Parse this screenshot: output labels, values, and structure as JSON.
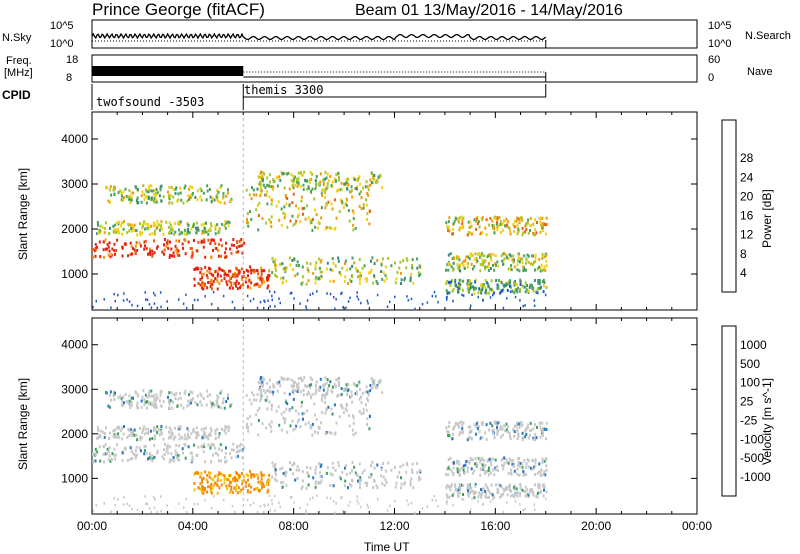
{
  "header": {
    "title": "Prince George (fitACF)",
    "beam_dates": "Beam 01  13/May/2016 - 14/May/2016"
  },
  "side_labels": {
    "nsky": "N.Sky",
    "nsearch": "N.Search",
    "freq_line1": "Freq.",
    "freq_line2": "[MHz]",
    "nave": "Nave",
    "cpid": "CPID",
    "nsky_top": "10^5",
    "nsky_bottom": "10^0",
    "nsearch_top": "10^5",
    "nsearch_bottom": "10^0",
    "freq_top": "18",
    "freq_bottom": "8",
    "nave_top": "60",
    "nave_bottom": "0"
  },
  "cpid_segments": [
    {
      "label": "twofsound -3503"
    },
    {
      "label": "themis 3300"
    }
  ],
  "chart_data": [
    {
      "type": "heatmap",
      "name": "power-panel",
      "xlabel": "",
      "ylabel": "Slant Range [km]",
      "xlim_hours": [
        0,
        24
      ],
      "ylim": [
        200,
        4600
      ],
      "yticks": [
        "1000",
        "2000",
        "3000",
        "4000"
      ],
      "colorbar": {
        "label": "Power [dB]",
        "ticks": [
          "4",
          "8",
          "12",
          "16",
          "20",
          "24",
          "28"
        ],
        "colors": [
          "#0a1ee8",
          "#1f58c8",
          "#3a8a7a",
          "#49a35c",
          "#a8c72b",
          "#f6d00f",
          "#f49a0a",
          "#ed5e0b",
          "#e62010"
        ]
      },
      "bands": [
        {
          "t0": 0.0,
          "t1": 6.0,
          "r0": 1400,
          "r1": 1800,
          "level": 8
        },
        {
          "t0": 0.0,
          "t1": 5.5,
          "r0": 1900,
          "r1": 2200,
          "level": 4
        },
        {
          "t0": 0.5,
          "t1": 5.5,
          "r0": 2600,
          "r1": 3000,
          "level": 4
        },
        {
          "t0": 4.0,
          "t1": 7.0,
          "r0": 700,
          "r1": 1200,
          "level": 8
        },
        {
          "t0": 6.0,
          "t1": 11.0,
          "r0": 2000,
          "r1": 3000,
          "level": 5
        },
        {
          "t0": 6.5,
          "t1": 11.5,
          "r0": 2900,
          "r1": 3300,
          "level": 4
        },
        {
          "t0": 7.0,
          "t1": 13.0,
          "r0": 800,
          "r1": 1400,
          "level": 4
        },
        {
          "t0": 14.0,
          "t1": 18.0,
          "r0": 1900,
          "r1": 2300,
          "level": 5
        },
        {
          "t0": 14.0,
          "t1": 18.0,
          "r0": 1100,
          "r1": 1500,
          "level": 4
        },
        {
          "t0": 14.0,
          "t1": 18.0,
          "r0": 600,
          "r1": 900,
          "level": 3
        }
      ]
    },
    {
      "type": "heatmap",
      "name": "velocity-panel",
      "xlabel": "Time UT",
      "ylabel": "Slant Range [km]",
      "xlim_hours": [
        0,
        24
      ],
      "ylim": [
        200,
        4600
      ],
      "yticks": [
        "1000",
        "2000",
        "3000",
        "4000"
      ],
      "xticks": [
        "00:00",
        "04:00",
        "08:00",
        "12:00",
        "16:00",
        "20:00",
        "00:00"
      ],
      "colorbar": {
        "label": "Velocity [m s^-1]",
        "ticks": [
          "1000",
          "500",
          "100",
          "25",
          "-25",
          "-100",
          "-500",
          "-1000"
        ],
        "colors": [
          "#1438c8",
          "#2a78c0",
          "#3f9f5c",
          "#7bd43d",
          "#c8c8c8",
          "#f5c20a",
          "#f58a0a",
          "#f04a0e",
          "#e51010"
        ]
      }
    }
  ]
}
